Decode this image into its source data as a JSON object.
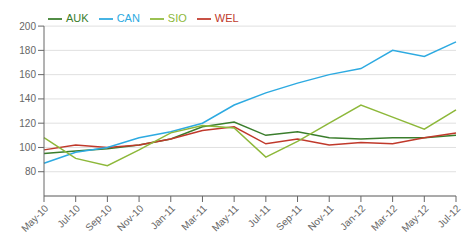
{
  "chart_data": {
    "type": "line",
    "categories": [
      "May-10",
      "Jul-10",
      "Sep-10",
      "Nov-10",
      "Jan-11",
      "Mar-11",
      "May-11",
      "Jul-11",
      "Sep-11",
      "Nov-11",
      "Jan-12",
      "Mar-12",
      "May-12",
      "Jul-12"
    ],
    "series": [
      {
        "name": "AUK",
        "color": "#3a7d2c",
        "values": [
          95,
          97,
          99,
          102,
          107,
          117,
          121,
          110,
          113,
          108,
          107,
          108,
          108,
          110
        ]
      },
      {
        "name": "WEL",
        "color": "#c0392b",
        "values": [
          98,
          102,
          100,
          102,
          107,
          114,
          117,
          103,
          107,
          102,
          104,
          103,
          108,
          112
        ]
      },
      {
        "name": "CAN",
        "color": "#2daae1",
        "values": [
          87,
          96,
          100,
          108,
          113,
          120,
          135,
          145,
          153,
          160,
          165,
          180,
          175,
          187
        ]
      },
      {
        "name": "SIO",
        "color": "#8db83a",
        "values": [
          108,
          91,
          85,
          98,
          112,
          118,
          116,
          92,
          105,
          120,
          135,
          125,
          115,
          131
        ]
      }
    ],
    "ylim": [
      60,
      200
    ],
    "yticks": [
      80,
      100,
      120,
      140,
      160,
      180,
      200
    ],
    "grid": true,
    "legend": "upper left"
  }
}
